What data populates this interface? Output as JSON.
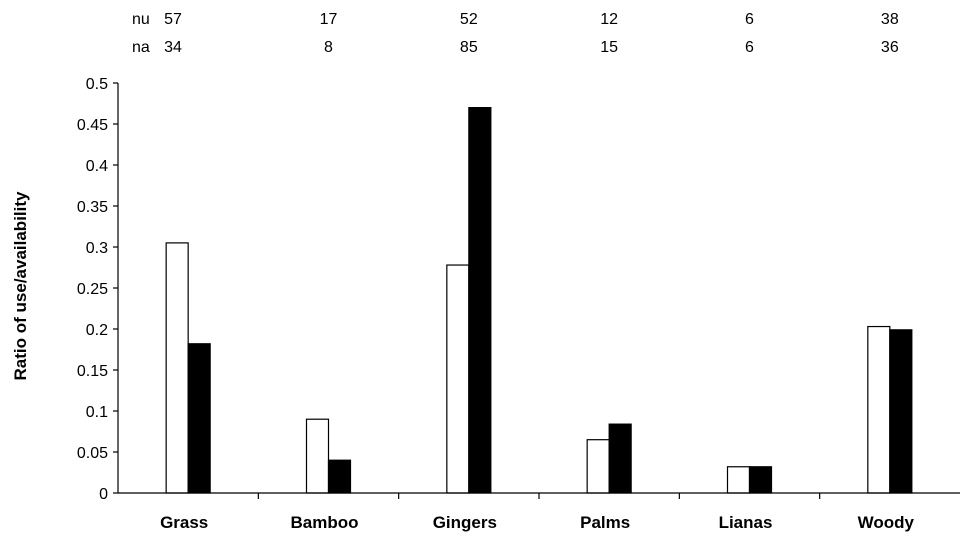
{
  "chart_data": {
    "type": "bar",
    "title": "",
    "xlabel": "",
    "ylabel": "Ratio of use/availability",
    "ylim": [
      0,
      0.5
    ],
    "ytick_step": 0.05,
    "yticks": [
      "0",
      "0.05",
      "0.1",
      "0.15",
      "0.2",
      "0.25",
      "0.3",
      "0.35",
      "0.4",
      "0.45",
      "0.5"
    ],
    "categories": [
      "Grass",
      "Bamboo",
      "Gingers",
      "Palms",
      "Lianas",
      "Woody"
    ],
    "series": [
      {
        "values": [
          0.305,
          0.09,
          0.278,
          0.065,
          0.032,
          0.203
        ],
        "color": "#ffffff"
      },
      {
        "values": [
          0.182,
          0.04,
          0.47,
          0.084,
          0.032,
          0.199
        ],
        "color": "#000000"
      }
    ],
    "count_rows": [
      {
        "label": "nu",
        "values": [
          "57",
          "17",
          "52",
          "12",
          "6",
          "38"
        ]
      },
      {
        "label": "na",
        "values": [
          "34",
          "8",
          "85",
          "15",
          "6",
          "36"
        ]
      }
    ],
    "grid": false,
    "legend": "none"
  }
}
